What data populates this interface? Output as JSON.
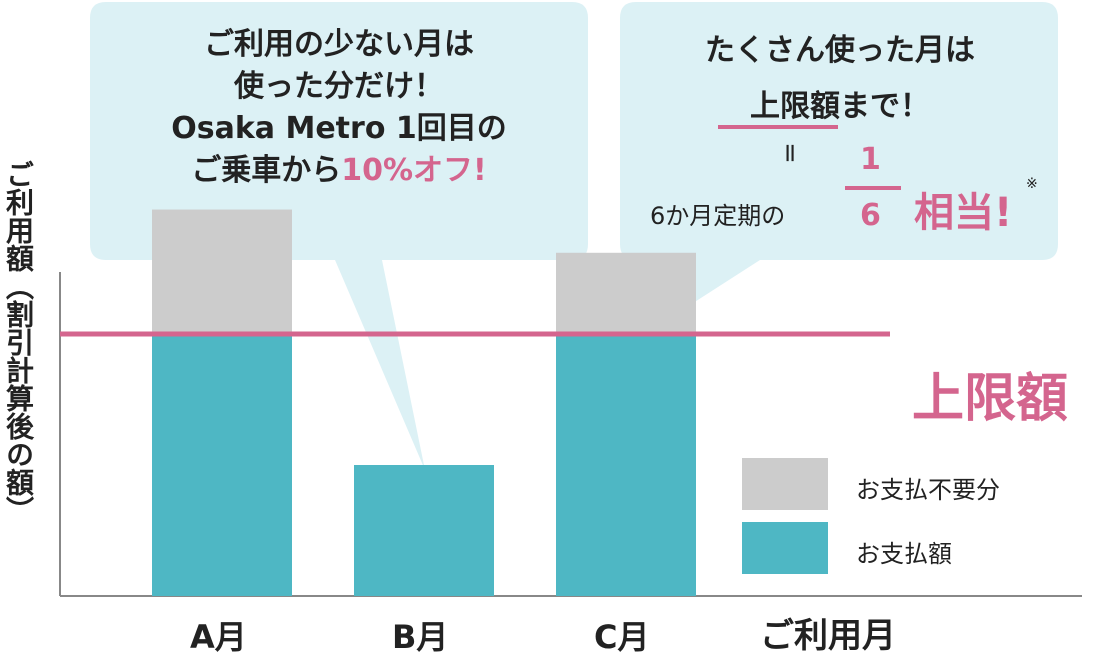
{
  "chart_data": {
    "type": "bar",
    "stacked": true,
    "categories": [
      "A月",
      "B月",
      "C月"
    ],
    "series": [
      {
        "name": "お支払額",
        "values": [
          200,
          100,
          200
        ],
        "color": "#4eb7c4"
      },
      {
        "name": "お支払不要分",
        "values": [
          95,
          0,
          62
        ],
        "color": "#cccccc"
      }
    ],
    "cap_line": {
      "label": "上限額",
      "value": 200,
      "color": "#d4658e"
    },
    "ylim": [
      0,
      400
    ],
    "ylabel": "ご利用額（割引計算後の額）",
    "xlabel": "ご利用月",
    "grid": false,
    "legend_position": "bottom-right"
  },
  "callouts": {
    "left": {
      "line1": "ご利用の少ない月は",
      "line2": "使った分だけ！",
      "line3": "Osaka Metro 1回目の",
      "line4_prefix": "ご乗車から",
      "line4_highlight": "10%オフ!"
    },
    "right": {
      "line1": "たくさん使った月は",
      "line2_underlined": "上限額",
      "line2_rest": "まで！",
      "equals": "=",
      "line3_prefix": "6か月定期の",
      "fraction_numerator": "1",
      "fraction_denominator": "6",
      "line3_highlight": "相当!",
      "note_mark": "※"
    }
  },
  "colors": {
    "teal": "#4eb7c4",
    "gray": "#cccccc",
    "pink": "#d4658e",
    "bubble": "#dcf1f5"
  }
}
